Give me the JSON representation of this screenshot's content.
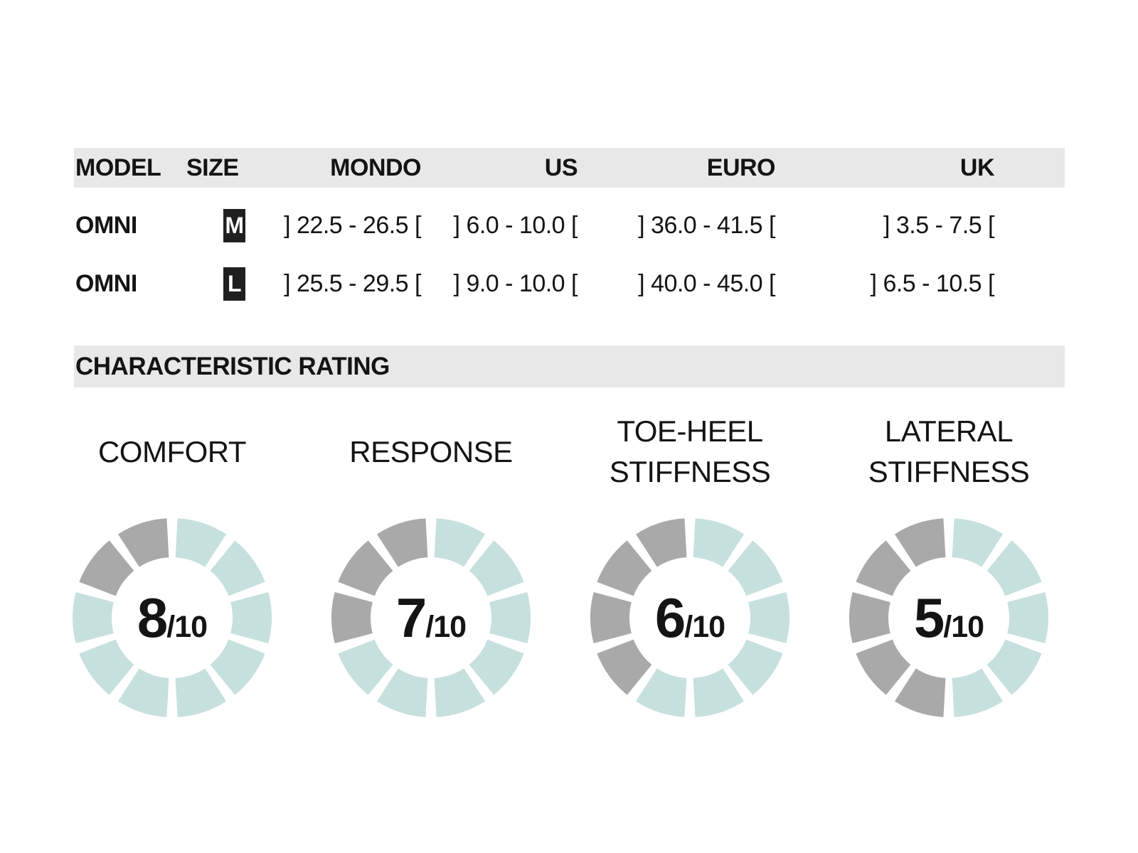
{
  "table": {
    "columns": [
      "MODEL",
      "SIZE",
      "MONDO",
      "US",
      "EURO",
      "UK"
    ],
    "rows": [
      {
        "model": "OMNI",
        "size": "M",
        "mondo": "] 22.5 - 26.5 [",
        "us": "] 6.0 - 10.0 [",
        "euro": "] 36.0 - 41.5 [",
        "uk": "] 3.5 - 7.5 ["
      },
      {
        "model": "OMNI",
        "size": "L",
        "mondo": "] 25.5 - 29.5 [",
        "us": "] 9.0 - 10.0 [",
        "euro": "] 40.0 - 45.0 [",
        "uk": "] 6.5 - 10.5 ["
      }
    ]
  },
  "section_title": "CHARACTERISTIC RATING",
  "chart_data": [
    {
      "type": "donut",
      "title": "COMFORT",
      "title_lines": [
        "COMFORT"
      ],
      "value": 8,
      "max": 10,
      "segments": 10,
      "center_label": "8/10",
      "fill_direction": "clockwise-from-top",
      "filled_color": "#c6e0de",
      "empty_color": "#a9a9a9"
    },
    {
      "type": "donut",
      "title": "RESPONSE",
      "title_lines": [
        "RESPONSE"
      ],
      "value": 7,
      "max": 10,
      "segments": 10,
      "center_label": "7/10",
      "fill_direction": "clockwise-from-top",
      "filled_color": "#c6e0de",
      "empty_color": "#a9a9a9"
    },
    {
      "type": "donut",
      "title": "TOE-HEEL STIFFNESS",
      "title_lines": [
        "TOE-HEEL",
        "STIFFNESS"
      ],
      "value": 6,
      "max": 10,
      "segments": 10,
      "center_label": "6/10",
      "fill_direction": "clockwise-from-top",
      "filled_color": "#c6e0de",
      "empty_color": "#a9a9a9"
    },
    {
      "type": "donut",
      "title": "LATERAL STIFFNESS",
      "title_lines": [
        "LATERAL",
        "STIFFNESS"
      ],
      "value": 5,
      "max": 10,
      "segments": 10,
      "center_label": "5/10",
      "fill_direction": "clockwise-from-top",
      "filled_color": "#c6e0de",
      "empty_color": "#a9a9a9"
    }
  ],
  "colors": {
    "background": "#ffffff",
    "bar_background": "#e8e8e8",
    "text": "#141414",
    "badge_background": "#1f1f1f",
    "badge_text": "#ffffff",
    "segment_filled": "#c6e0de",
    "segment_empty": "#a9a9a9"
  }
}
